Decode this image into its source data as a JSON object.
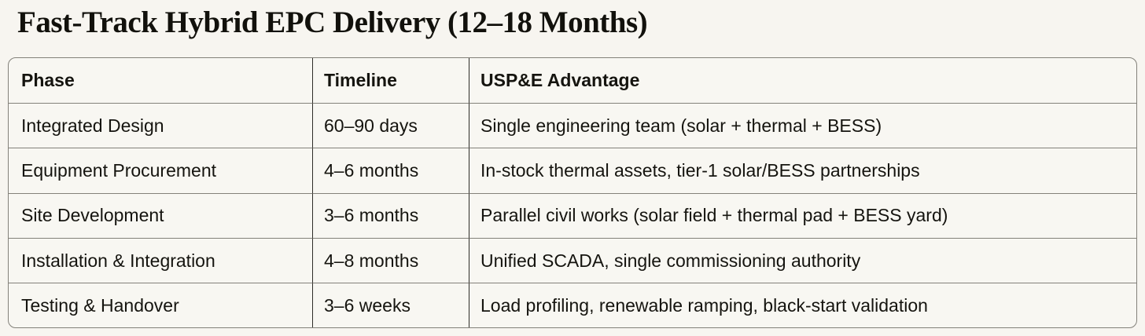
{
  "page": {
    "background": "#f7f5f0",
    "title": "Fast-Track Hybrid EPC Delivery (12–18 Months)"
  },
  "table": {
    "border_color": "#83817a",
    "divider_color": "#2e2d28",
    "header": {
      "phase": "Phase",
      "timeline": "Timeline",
      "advantage": "USP&E Advantage"
    },
    "rows": [
      {
        "phase": "Integrated Design",
        "timeline": "60–90 days",
        "advantage": "Single engineering team (solar + thermal + BESS)"
      },
      {
        "phase": "Equipment Procurement",
        "timeline": "4–6 months",
        "advantage": "In-stock thermal assets, tier-1 solar/BESS partnerships"
      },
      {
        "phase": "Site Development",
        "timeline": "3–6 months",
        "advantage": "Parallel civil works (solar field + thermal pad + BESS yard)"
      },
      {
        "phase": "Installation & Integration",
        "timeline": "4–8 months",
        "advantage": "Unified SCADA, single commissioning authority"
      },
      {
        "phase": "Testing & Handover",
        "timeline": "3–6 weeks",
        "advantage": "Load profiling, renewable ramping, black-start validation"
      }
    ]
  }
}
